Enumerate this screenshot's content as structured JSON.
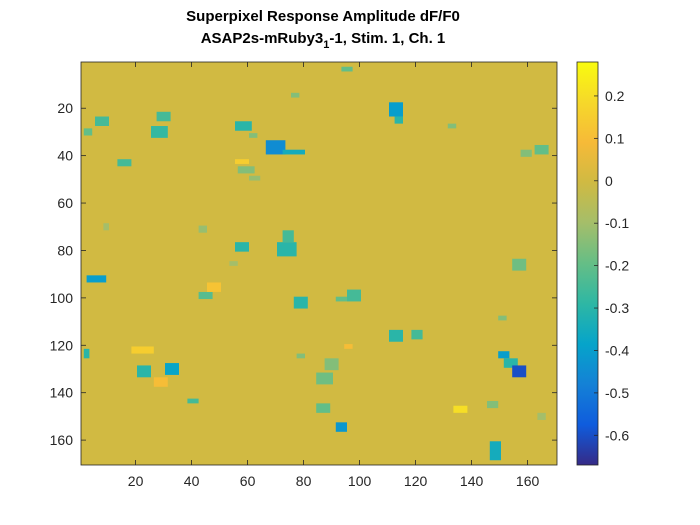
{
  "chart_data": {
    "type": "heatmap",
    "title_line1": "Superpixel Response Amplitude dF/F0",
    "title_line2_prefix": "ASAP2s-mRuby3",
    "title_line2_subscript": "1",
    "title_line2_suffix": "-1, Stim. 1, Ch. 1",
    "xlabel": "",
    "ylabel": "",
    "xlim": [
      0.5,
      170.5
    ],
    "ylim": [
      0.5,
      170.5
    ],
    "y_reversed": true,
    "x_ticks": [
      20,
      40,
      60,
      80,
      100,
      120,
      140,
      160
    ],
    "x_tick_labels": [
      "20",
      "40",
      "60",
      "80",
      "100",
      "120",
      "140",
      "160"
    ],
    "y_ticks": [
      20,
      40,
      60,
      80,
      100,
      120,
      140,
      160
    ],
    "y_tick_labels": [
      "20",
      "40",
      "60",
      "80",
      "100",
      "120",
      "140",
      "160"
    ],
    "colorbar": {
      "colormap": "parula",
      "clim": [
        -0.67,
        0.28
      ],
      "ticks": [
        0.2,
        0.1,
        0,
        -0.1,
        -0.2,
        -0.3,
        -0.4,
        -0.5,
        -0.6
      ],
      "tick_labels": [
        "0.2",
        "0.1",
        "0",
        "-0.1",
        "-0.2",
        "-0.3",
        "-0.4",
        "-0.5",
        "-0.6"
      ]
    },
    "background_value": 0,
    "patches": [
      {
        "x": 94,
        "y": 3,
        "w": 4,
        "h": 2,
        "v": -0.2
      },
      {
        "x": 6,
        "y": 24,
        "w": 5,
        "h": 4,
        "v": -0.25
      },
      {
        "x": 2,
        "y": 29,
        "w": 3,
        "h": 3,
        "v": -0.2
      },
      {
        "x": 28,
        "y": 22,
        "w": 5,
        "h": 4,
        "v": -0.25
      },
      {
        "x": 26,
        "y": 28,
        "w": 6,
        "h": 5,
        "v": -0.28
      },
      {
        "x": 56,
        "y": 26,
        "w": 6,
        "h": 4,
        "v": -0.3
      },
      {
        "x": 67,
        "y": 34,
        "w": 7,
        "h": 6,
        "v": -0.45
      },
      {
        "x": 73,
        "y": 38,
        "w": 8,
        "h": 2,
        "v": -0.35
      },
      {
        "x": 111,
        "y": 18,
        "w": 5,
        "h": 6,
        "v": -0.4
      },
      {
        "x": 113,
        "y": 24,
        "w": 3,
        "h": 3,
        "v": -0.3
      },
      {
        "x": 76,
        "y": 14,
        "w": 3,
        "h": 2,
        "v": -0.15
      },
      {
        "x": 61,
        "y": 31,
        "w": 3,
        "h": 2,
        "v": -0.15
      },
      {
        "x": 14,
        "y": 42,
        "w": 5,
        "h": 3,
        "v": -0.25
      },
      {
        "x": 56,
        "y": 42,
        "w": 5,
        "h": 2,
        "v": 0.15
      },
      {
        "x": 57,
        "y": 45,
        "w": 6,
        "h": 3,
        "v": -0.15
      },
      {
        "x": 61,
        "y": 49,
        "w": 4,
        "h": 2,
        "v": -0.12
      },
      {
        "x": 163,
        "y": 36,
        "w": 5,
        "h": 4,
        "v": -0.2
      },
      {
        "x": 158,
        "y": 38,
        "w": 4,
        "h": 3,
        "v": -0.15
      },
      {
        "x": 132,
        "y": 27,
        "w": 3,
        "h": 2,
        "v": -0.15
      },
      {
        "x": 9,
        "y": 69,
        "w": 2,
        "h": 3,
        "v": -0.1
      },
      {
        "x": 43,
        "y": 70,
        "w": 3,
        "h": 3,
        "v": -0.12
      },
      {
        "x": 56,
        "y": 77,
        "w": 5,
        "h": 4,
        "v": -0.3
      },
      {
        "x": 73,
        "y": 72,
        "w": 4,
        "h": 5,
        "v": -0.25
      },
      {
        "x": 71,
        "y": 77,
        "w": 7,
        "h": 6,
        "v": -0.3
      },
      {
        "x": 54,
        "y": 85,
        "w": 3,
        "h": 2,
        "v": -0.1
      },
      {
        "x": 3,
        "y": 91,
        "w": 7,
        "h": 3,
        "v": -0.4
      },
      {
        "x": 43,
        "y": 98,
        "w": 5,
        "h": 3,
        "v": -0.22
      },
      {
        "x": 46,
        "y": 94,
        "w": 5,
        "h": 4,
        "v": 0.12
      },
      {
        "x": 96,
        "y": 97,
        "w": 5,
        "h": 5,
        "v": -0.25
      },
      {
        "x": 92,
        "y": 100,
        "w": 4,
        "h": 2,
        "v": -0.2
      },
      {
        "x": 77,
        "y": 100,
        "w": 5,
        "h": 5,
        "v": -0.3
      },
      {
        "x": 155,
        "y": 84,
        "w": 5,
        "h": 5,
        "v": -0.18
      },
      {
        "x": 150,
        "y": 108,
        "w": 3,
        "h": 2,
        "v": -0.15
      },
      {
        "x": 111,
        "y": 114,
        "w": 5,
        "h": 5,
        "v": -0.3
      },
      {
        "x": 119,
        "y": 114,
        "w": 4,
        "h": 4,
        "v": -0.25
      },
      {
        "x": 2,
        "y": 122,
        "w": 2,
        "h": 4,
        "v": -0.3
      },
      {
        "x": 19,
        "y": 121,
        "w": 8,
        "h": 3,
        "v": 0.15
      },
      {
        "x": 21,
        "y": 129,
        "w": 5,
        "h": 5,
        "v": -0.3
      },
      {
        "x": 31,
        "y": 128,
        "w": 5,
        "h": 5,
        "v": -0.38
      },
      {
        "x": 27,
        "y": 134,
        "w": 5,
        "h": 4,
        "v": 0.1
      },
      {
        "x": 39,
        "y": 143,
        "w": 4,
        "h": 2,
        "v": -0.25
      },
      {
        "x": 78,
        "y": 124,
        "w": 3,
        "h": 2,
        "v": -0.15
      },
      {
        "x": 88,
        "y": 126,
        "w": 5,
        "h": 5,
        "v": -0.15
      },
      {
        "x": 85,
        "y": 132,
        "w": 6,
        "h": 5,
        "v": -0.18
      },
      {
        "x": 95,
        "y": 120,
        "w": 3,
        "h": 2,
        "v": 0.1
      },
      {
        "x": 85,
        "y": 145,
        "w": 5,
        "h": 4,
        "v": -0.2
      },
      {
        "x": 92,
        "y": 153,
        "w": 4,
        "h": 4,
        "v": -0.42
      },
      {
        "x": 134,
        "y": 146,
        "w": 5,
        "h": 3,
        "v": 0.2
      },
      {
        "x": 146,
        "y": 144,
        "w": 4,
        "h": 3,
        "v": -0.15
      },
      {
        "x": 150,
        "y": 123,
        "w": 4,
        "h": 3,
        "v": -0.4
      },
      {
        "x": 152,
        "y": 126,
        "w": 5,
        "h": 4,
        "v": -0.3
      },
      {
        "x": 155,
        "y": 129,
        "w": 5,
        "h": 5,
        "v": -0.6
      },
      {
        "x": 147,
        "y": 161,
        "w": 4,
        "h": 8,
        "v": -0.35
      },
      {
        "x": 164,
        "y": 149,
        "w": 3,
        "h": 3,
        "v": -0.1
      }
    ]
  }
}
